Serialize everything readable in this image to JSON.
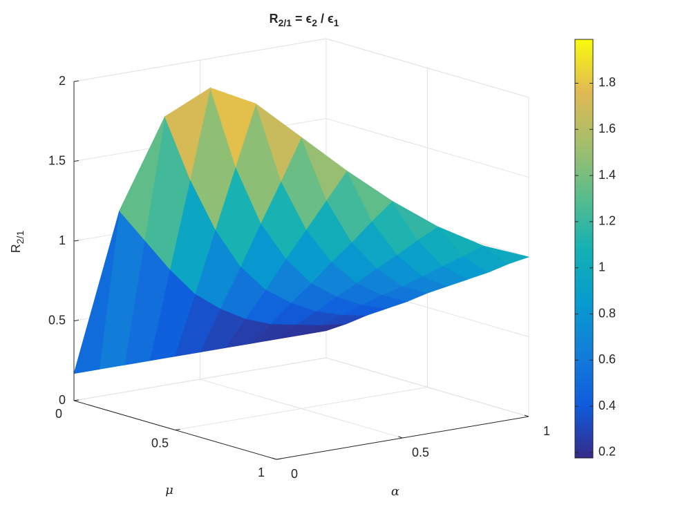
{
  "chart_data": {
    "type": "surface",
    "title": [
      "R",
      "2/1",
      " = ϵ",
      "2",
      " / ϵ",
      "1"
    ],
    "x_label": "α",
    "y_label": "μ",
    "z_label": [
      "R",
      "2/1"
    ],
    "x": [
      0,
      0.1,
      0.2,
      0.3,
      0.4,
      0.5,
      0.6,
      0.7,
      0.8,
      0.9,
      1
    ],
    "y": [
      0,
      0.1,
      0.2,
      0.3,
      0.4,
      0.5,
      0.6,
      0.7,
      0.8,
      0.9,
      1
    ],
    "z": [
      [
        0.17,
        0.17,
        0.17,
        0.17,
        0.17,
        0.17,
        0.17,
        0.17,
        0.17,
        0.17,
        0.17
      ],
      [
        null,
        1.2,
        0.99,
        0.78,
        0.6,
        0.48,
        0.39,
        0.33,
        0.3,
        0.27,
        0.25
      ],
      [
        null,
        null,
        1.8,
        1.38,
        1.04,
        0.78,
        0.61,
        0.5,
        0.42,
        0.37,
        0.34
      ],
      [
        null,
        null,
        null,
        1.99,
        1.47,
        1.09,
        0.84,
        0.66,
        0.55,
        0.47,
        0.42
      ],
      [
        null,
        null,
        null,
        null,
        1.9,
        1.39,
        1.06,
        0.83,
        0.67,
        0.57,
        0.5
      ],
      [
        null,
        null,
        null,
        null,
        null,
        1.7,
        1.28,
        0.99,
        0.8,
        0.66,
        0.59
      ],
      [
        null,
        null,
        null,
        null,
        null,
        null,
        1.5,
        1.16,
        0.92,
        0.76,
        0.67
      ],
      [
        null,
        null,
        null,
        null,
        null,
        null,
        null,
        1.32,
        1.05,
        0.86,
        0.75
      ],
      [
        null,
        null,
        null,
        null,
        null,
        null,
        null,
        null,
        1.17,
        0.96,
        0.83
      ],
      [
        null,
        null,
        null,
        null,
        null,
        null,
        null,
        null,
        null,
        1.06,
        0.92
      ],
      [
        null,
        null,
        null,
        null,
        null,
        null,
        null,
        null,
        null,
        null,
        1.0
      ]
    ],
    "xlim": [
      0,
      1
    ],
    "ylim": [
      0,
      1
    ],
    "zlim": [
      0,
      2
    ],
    "xticks": [
      0,
      0.5,
      1
    ],
    "yticks": [
      0,
      0.5,
      1
    ],
    "zticks": [
      0,
      0.5,
      1,
      1.5,
      2
    ],
    "grid": true,
    "colormap": "parula",
    "colorbar": {
      "clim": [
        0.176,
        1.99
      ],
      "ticks": [
        0.2,
        0.4,
        0.6,
        0.8,
        1,
        1.2,
        1.4,
        1.6,
        1.8
      ]
    }
  }
}
